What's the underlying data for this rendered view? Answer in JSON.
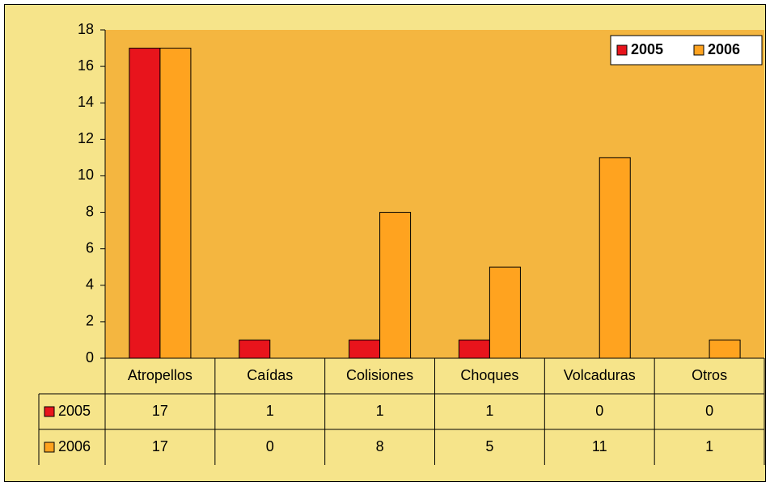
{
  "chart_data": {
    "type": "bar",
    "categories": [
      "Atropellos",
      "Caídas",
      "Colisiones",
      "Choques",
      "Volcaduras",
      "Otros"
    ],
    "series": [
      {
        "name": "2005",
        "color": "#e8141c",
        "values": [
          17,
          1,
          1,
          1,
          0,
          0
        ]
      },
      {
        "name": "2006",
        "color": "#ffa31f",
        "values": [
          17,
          0,
          8,
          5,
          11,
          1
        ]
      }
    ],
    "ylim": [
      0,
      18
    ],
    "yticks": [
      0,
      2,
      4,
      6,
      8,
      10,
      12,
      14,
      16,
      18
    ],
    "grid": false,
    "legend": "upper right",
    "data_table": true
  }
}
